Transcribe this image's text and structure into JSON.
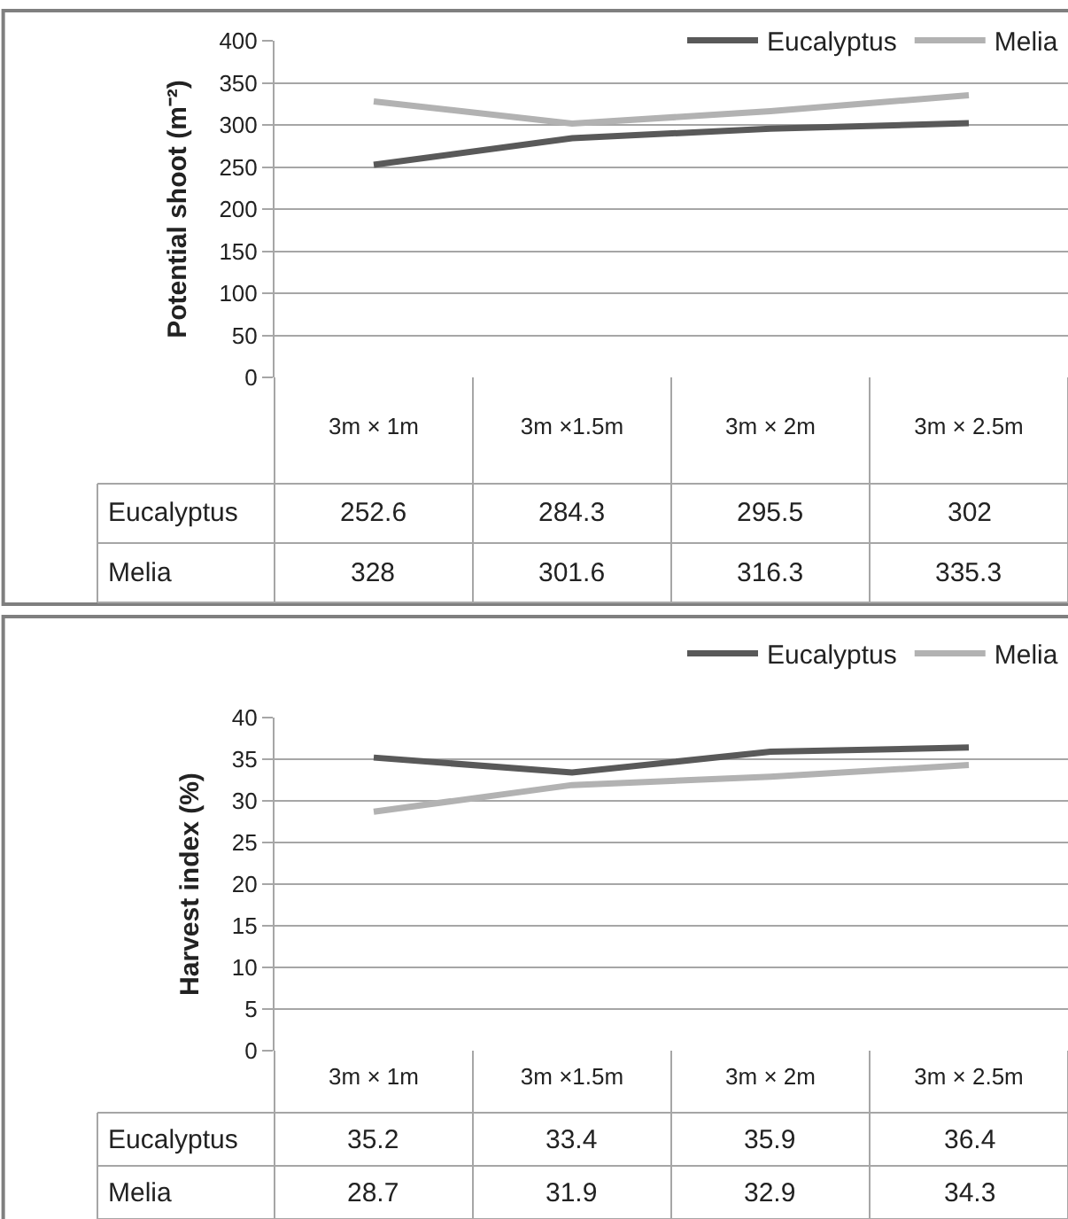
{
  "chart_data": [
    {
      "type": "line",
      "ylabel": "Potential shoot (m⁻²)",
      "categories": [
        "3m × 1m",
        "3m ×1.5m",
        "3m × 2m",
        "3m × 2.5m"
      ],
      "ylim": [
        0,
        400
      ],
      "yticks": [
        0,
        50,
        100,
        150,
        200,
        250,
        300,
        350,
        400
      ],
      "grid": "y",
      "legend": "top right",
      "data_labels": true,
      "marker": "none",
      "series": [
        {
          "name": "Eucalyptus",
          "color": "#595959",
          "values": [
            252.6,
            284.3,
            295.5,
            302
          ]
        },
        {
          "name": "Melia",
          "color": "#b2b2b2",
          "values": [
            328,
            301.6,
            316.3,
            335.3
          ]
        }
      ]
    },
    {
      "type": "line",
      "ylabel": "Harvest index (%)",
      "categories": [
        "3m × 1m",
        "3m ×1.5m",
        "3m × 2m",
        "3m × 2.5m"
      ],
      "ylim": [
        0,
        40
      ],
      "yticks": [
        0,
        5,
        10,
        15,
        20,
        25,
        30,
        35,
        40
      ],
      "grid": "y",
      "legend": "top right",
      "data_labels": true,
      "marker": "none",
      "series": [
        {
          "name": "Eucalyptus",
          "color": "#595959",
          "values": [
            35.2,
            33.4,
            35.9,
            36.4
          ]
        },
        {
          "name": "Melia",
          "color": "#b2b2b2",
          "values": [
            28.7,
            31.9,
            32.9,
            34.3
          ]
        }
      ]
    }
  ]
}
